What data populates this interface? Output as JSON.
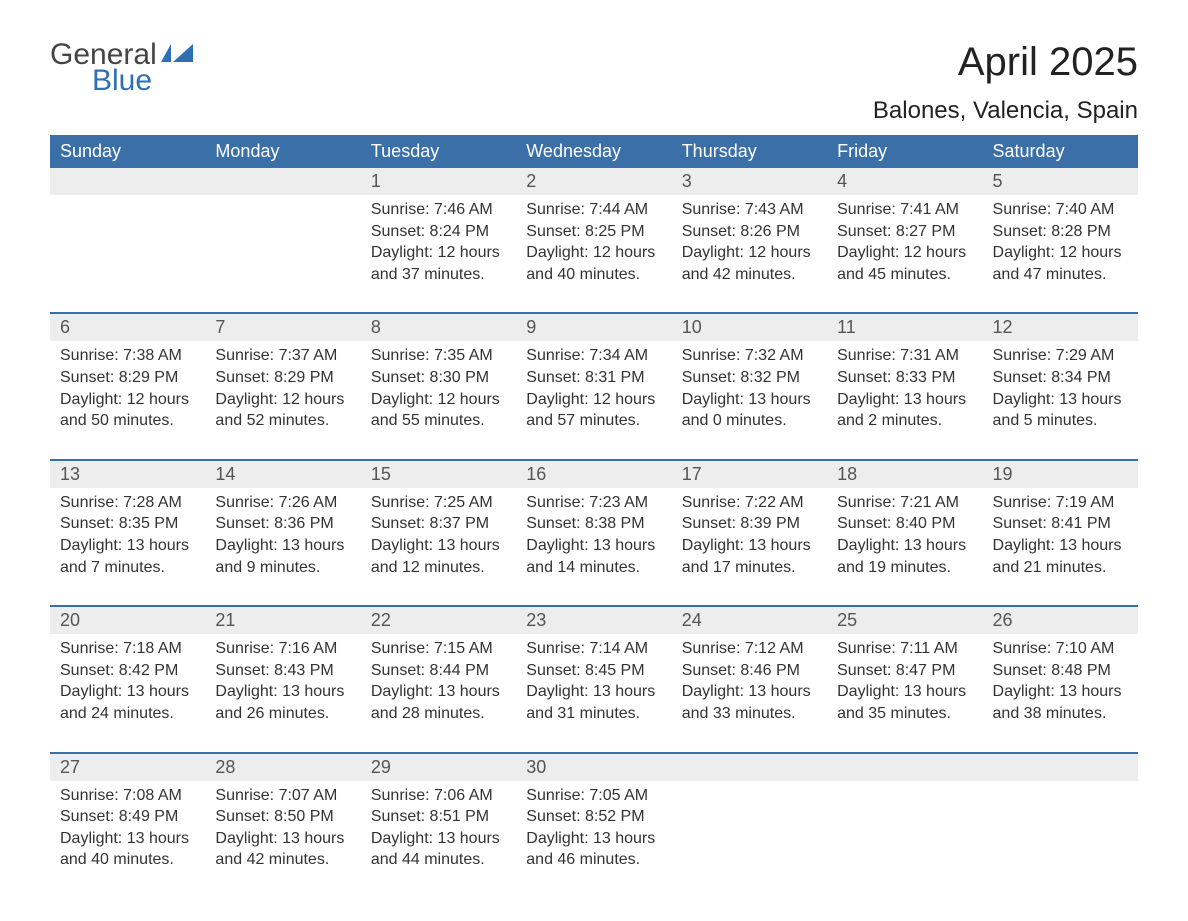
{
  "logo": {
    "word1": "General",
    "word2": "Blue",
    "color_gray": "#444444",
    "color_blue": "#2f6fb3"
  },
  "title": "April 2025",
  "location": "Balones, Valencia, Spain",
  "colors": {
    "header_bg": "#3b6fa8",
    "header_text": "#ffffff",
    "daynum_bg": "#ededed",
    "text": "#333333",
    "rule": "#3b6fa8",
    "page_bg": "#ffffff"
  },
  "fonts": {
    "title_size": 40,
    "location_size": 24,
    "header_size": 18,
    "body_size": 16
  },
  "day_headers": [
    "Sunday",
    "Monday",
    "Tuesday",
    "Wednesday",
    "Thursday",
    "Friday",
    "Saturday"
  ],
  "weeks": [
    [
      null,
      null,
      {
        "n": "1",
        "sr": "7:46 AM",
        "ss": "8:24 PM",
        "dl": "12 hours and 37 minutes."
      },
      {
        "n": "2",
        "sr": "7:44 AM",
        "ss": "8:25 PM",
        "dl": "12 hours and 40 minutes."
      },
      {
        "n": "3",
        "sr": "7:43 AM",
        "ss": "8:26 PM",
        "dl": "12 hours and 42 minutes."
      },
      {
        "n": "4",
        "sr": "7:41 AM",
        "ss": "8:27 PM",
        "dl": "12 hours and 45 minutes."
      },
      {
        "n": "5",
        "sr": "7:40 AM",
        "ss": "8:28 PM",
        "dl": "12 hours and 47 minutes."
      }
    ],
    [
      {
        "n": "6",
        "sr": "7:38 AM",
        "ss": "8:29 PM",
        "dl": "12 hours and 50 minutes."
      },
      {
        "n": "7",
        "sr": "7:37 AM",
        "ss": "8:29 PM",
        "dl": "12 hours and 52 minutes."
      },
      {
        "n": "8",
        "sr": "7:35 AM",
        "ss": "8:30 PM",
        "dl": "12 hours and 55 minutes."
      },
      {
        "n": "9",
        "sr": "7:34 AM",
        "ss": "8:31 PM",
        "dl": "12 hours and 57 minutes."
      },
      {
        "n": "10",
        "sr": "7:32 AM",
        "ss": "8:32 PM",
        "dl": "13 hours and 0 minutes."
      },
      {
        "n": "11",
        "sr": "7:31 AM",
        "ss": "8:33 PM",
        "dl": "13 hours and 2 minutes."
      },
      {
        "n": "12",
        "sr": "7:29 AM",
        "ss": "8:34 PM",
        "dl": "13 hours and 5 minutes."
      }
    ],
    [
      {
        "n": "13",
        "sr": "7:28 AM",
        "ss": "8:35 PM",
        "dl": "13 hours and 7 minutes."
      },
      {
        "n": "14",
        "sr": "7:26 AM",
        "ss": "8:36 PM",
        "dl": "13 hours and 9 minutes."
      },
      {
        "n": "15",
        "sr": "7:25 AM",
        "ss": "8:37 PM",
        "dl": "13 hours and 12 minutes."
      },
      {
        "n": "16",
        "sr": "7:23 AM",
        "ss": "8:38 PM",
        "dl": "13 hours and 14 minutes."
      },
      {
        "n": "17",
        "sr": "7:22 AM",
        "ss": "8:39 PM",
        "dl": "13 hours and 17 minutes."
      },
      {
        "n": "18",
        "sr": "7:21 AM",
        "ss": "8:40 PM",
        "dl": "13 hours and 19 minutes."
      },
      {
        "n": "19",
        "sr": "7:19 AM",
        "ss": "8:41 PM",
        "dl": "13 hours and 21 minutes."
      }
    ],
    [
      {
        "n": "20",
        "sr": "7:18 AM",
        "ss": "8:42 PM",
        "dl": "13 hours and 24 minutes."
      },
      {
        "n": "21",
        "sr": "7:16 AM",
        "ss": "8:43 PM",
        "dl": "13 hours and 26 minutes."
      },
      {
        "n": "22",
        "sr": "7:15 AM",
        "ss": "8:44 PM",
        "dl": "13 hours and 28 minutes."
      },
      {
        "n": "23",
        "sr": "7:14 AM",
        "ss": "8:45 PM",
        "dl": "13 hours and 31 minutes."
      },
      {
        "n": "24",
        "sr": "7:12 AM",
        "ss": "8:46 PM",
        "dl": "13 hours and 33 minutes."
      },
      {
        "n": "25",
        "sr": "7:11 AM",
        "ss": "8:47 PM",
        "dl": "13 hours and 35 minutes."
      },
      {
        "n": "26",
        "sr": "7:10 AM",
        "ss": "8:48 PM",
        "dl": "13 hours and 38 minutes."
      }
    ],
    [
      {
        "n": "27",
        "sr": "7:08 AM",
        "ss": "8:49 PM",
        "dl": "13 hours and 40 minutes."
      },
      {
        "n": "28",
        "sr": "7:07 AM",
        "ss": "8:50 PM",
        "dl": "13 hours and 42 minutes."
      },
      {
        "n": "29",
        "sr": "7:06 AM",
        "ss": "8:51 PM",
        "dl": "13 hours and 44 minutes."
      },
      {
        "n": "30",
        "sr": "7:05 AM",
        "ss": "8:52 PM",
        "dl": "13 hours and 46 minutes."
      },
      null,
      null,
      null
    ]
  ],
  "labels": {
    "sunrise": "Sunrise: ",
    "sunset": "Sunset: ",
    "daylight": "Daylight: "
  }
}
